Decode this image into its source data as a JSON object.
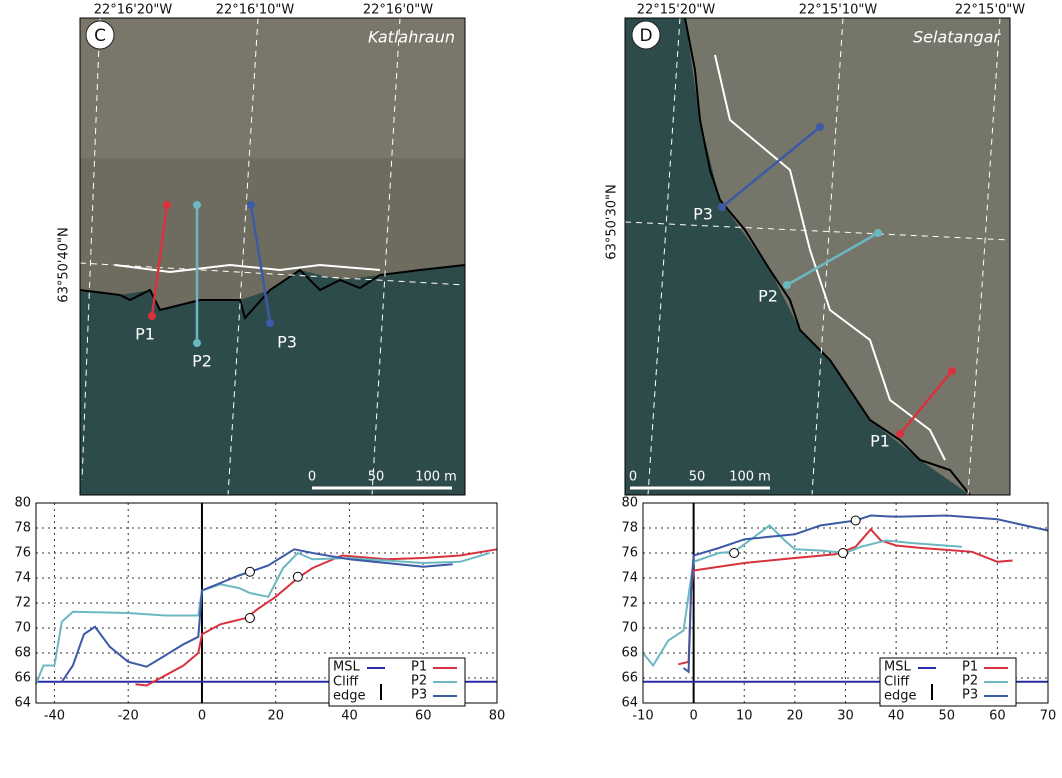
{
  "maps": [
    {
      "letter": "C",
      "site": "Katlahraun",
      "lon_labels": [
        "22°16'20\"W",
        "22°16'10\"W",
        "22°16'0\"W"
      ],
      "lat_label": "63°50'40\"N",
      "profiles": [
        "P1",
        "P2",
        "P3"
      ],
      "scale_labels": [
        "0",
        "50",
        "100 m"
      ]
    },
    {
      "letter": "D",
      "site": "Selatangar",
      "lon_labels": [
        "22°15'20\"W",
        "22°15'10\"W",
        "22°15'0\"W"
      ],
      "lat_label": "63°50'30\"N",
      "profiles": [
        "P1",
        "P2",
        "P3"
      ],
      "scale_labels": [
        "0",
        "50",
        "100 m"
      ]
    }
  ],
  "chart_data": [
    {
      "type": "line",
      "xlim": [
        -45,
        80
      ],
      "xticks": [
        -40,
        -20,
        0,
        20,
        40,
        60,
        80
      ],
      "ylim": [
        64,
        80
      ],
      "yticks": [
        64,
        66,
        68,
        70,
        72,
        74,
        76,
        78,
        80
      ],
      "grid": true,
      "legend": "lower right",
      "series": [
        {
          "name": "MSL",
          "color": "#2a2aa8",
          "x": [
            -45,
            80
          ],
          "values": [
            65.7,
            65.7
          ]
        },
        {
          "name": "P1",
          "color": "#d8323f",
          "x": [
            -18,
            -15,
            -10,
            -5,
            -1,
            0,
            5,
            12,
            15,
            20,
            26,
            30,
            38,
            50,
            60,
            70,
            80
          ],
          "values": [
            65.5,
            65.4,
            66.2,
            67,
            68,
            69.5,
            70.3,
            70.8,
            71.5,
            72.5,
            74,
            74.8,
            75.8,
            75.5,
            75.6,
            75.8,
            76.3
          ]
        },
        {
          "name": "P2",
          "color": "#6cb8c2",
          "x": [
            -45,
            -43,
            -40,
            -38,
            -35,
            -20,
            -10,
            -1,
            0,
            5,
            10,
            13,
            18,
            22,
            26,
            30,
            40,
            60,
            70,
            78
          ],
          "values": [
            65.5,
            67,
            67,
            70.5,
            71.3,
            71.2,
            71,
            71,
            73,
            73.5,
            73.2,
            72.8,
            72.5,
            74.8,
            76,
            75.5,
            75.6,
            75.2,
            75.3,
            76
          ]
        },
        {
          "name": "P3",
          "color": "#3d5aa6",
          "x": [
            -38,
            -35,
            -32,
            -29,
            -25,
            -20,
            -15,
            -10,
            -5,
            -1,
            0,
            5,
            10,
            13,
            18,
            25,
            30,
            40,
            50,
            60,
            68
          ],
          "values": [
            65.7,
            67,
            69.5,
            70.1,
            68.5,
            67.3,
            66.9,
            67.8,
            68.7,
            69.3,
            73,
            73.6,
            74.2,
            74.5,
            75,
            76.3,
            76,
            75.5,
            75.2,
            74.9,
            75.1
          ]
        }
      ],
      "cliff_edge_label": [
        "Cliff",
        "edge"
      ],
      "cliff_edge_x": 0,
      "markers": {
        "x": [
          13,
          26,
          13
        ],
        "values": [
          74.5,
          74.1,
          70.8
        ]
      }
    },
    {
      "type": "line",
      "xlim": [
        -10,
        70
      ],
      "xticks": [
        -10,
        0,
        10,
        20,
        30,
        40,
        50,
        60,
        70
      ],
      "ylim": [
        64,
        80
      ],
      "yticks": [
        64,
        66,
        68,
        70,
        72,
        74,
        76,
        78,
        80
      ],
      "grid": true,
      "legend": "lower right",
      "series": [
        {
          "name": "MSL",
          "color": "#2a2aa8",
          "x": [
            -10,
            70
          ],
          "values": [
            65.7,
            65.7
          ]
        },
        {
          "name": "P1",
          "color": "#d8323f",
          "x": [
            -3,
            -1,
            -0.5,
            0,
            5,
            10,
            20,
            28,
            32,
            35,
            37,
            40,
            45,
            55,
            60,
            63
          ],
          "values": [
            67.1,
            67.3,
            73,
            74.6,
            74.9,
            75.2,
            75.6,
            75.9,
            76.5,
            77.9,
            77,
            76.6,
            76.4,
            76.1,
            75.3,
            75.4
          ]
        },
        {
          "name": "P2",
          "color": "#6cb8c2",
          "x": [
            -10,
            -8,
            -5,
            -2,
            -0.5,
            0,
            5,
            8,
            12,
            15,
            18,
            20,
            25,
            30,
            33,
            38,
            43,
            53
          ],
          "values": [
            68,
            67,
            69,
            69.8,
            74,
            75.3,
            76,
            76.1,
            77.3,
            78.2,
            77,
            76.3,
            76.2,
            76,
            76.5,
            77,
            76.8,
            76.5
          ]
        },
        {
          "name": "P3",
          "color": "#3d5aa6",
          "x": [
            -2,
            -1,
            -0.5,
            0,
            5,
            10,
            15,
            20,
            25,
            32,
            35,
            40,
            50,
            60,
            70
          ],
          "values": [
            66.8,
            66.5,
            73,
            75.8,
            76.4,
            77.1,
            77.3,
            77.5,
            78.2,
            78.6,
            79,
            78.9,
            79,
            78.7,
            77.8
          ]
        }
      ],
      "cliff_edge_label": [
        "Cliff",
        "edge"
      ],
      "cliff_edge_x": 0,
      "markers": {
        "x": [
          8,
          29.5,
          32
        ],
        "values": [
          76,
          76,
          78.6
        ]
      }
    }
  ]
}
